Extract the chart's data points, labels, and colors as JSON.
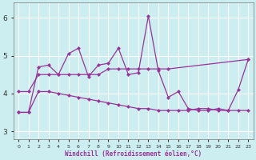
{
  "xlabel": "Windchill (Refroidissement éolien,°C)",
  "bg_color": "#cceef0",
  "line_color": "#993399",
  "grid_color": "#ffffff",
  "xlim": [
    -0.5,
    23.5
  ],
  "ylim": [
    2.8,
    6.4
  ],
  "yticks": [
    3,
    4,
    5,
    6
  ],
  "xticks": [
    0,
    1,
    2,
    3,
    4,
    5,
    6,
    7,
    8,
    9,
    10,
    11,
    12,
    13,
    14,
    15,
    16,
    17,
    18,
    19,
    20,
    21,
    22,
    23
  ],
  "series1_x": [
    0,
    1,
    2,
    3,
    4,
    5,
    6,
    7,
    8,
    9,
    10,
    11,
    12,
    13,
    14,
    15,
    16,
    17,
    18,
    19,
    20,
    21,
    22,
    23
  ],
  "series1_y": [
    3.5,
    3.5,
    4.7,
    4.75,
    4.5,
    5.05,
    5.2,
    4.45,
    4.75,
    4.8,
    5.2,
    4.5,
    4.55,
    6.05,
    4.6,
    3.9,
    4.05,
    3.6,
    3.55,
    3.55,
    3.6,
    3.55,
    4.1,
    4.9
  ],
  "series2_x": [
    0,
    1,
    2,
    3,
    4,
    5,
    6,
    7,
    8,
    9,
    10,
    11,
    12,
    13,
    14,
    15,
    23
  ],
  "series2_y": [
    4.05,
    4.05,
    4.5,
    4.5,
    4.5,
    4.5,
    4.5,
    4.5,
    4.5,
    4.65,
    4.65,
    4.65,
    4.65,
    4.65,
    4.65,
    4.65,
    4.9
  ],
  "series3_x": [
    0,
    1,
    2,
    3,
    4,
    5,
    6,
    7,
    8,
    9,
    10,
    11,
    12,
    13,
    14,
    15,
    16,
    17,
    18,
    19,
    20,
    21,
    22,
    23
  ],
  "series3_y": [
    3.5,
    3.5,
    4.05,
    4.05,
    4.0,
    3.95,
    3.9,
    3.85,
    3.8,
    3.75,
    3.7,
    3.65,
    3.6,
    3.6,
    3.55,
    3.55,
    3.55,
    3.55,
    3.6,
    3.6,
    3.55,
    3.55,
    3.55,
    3.55
  ]
}
